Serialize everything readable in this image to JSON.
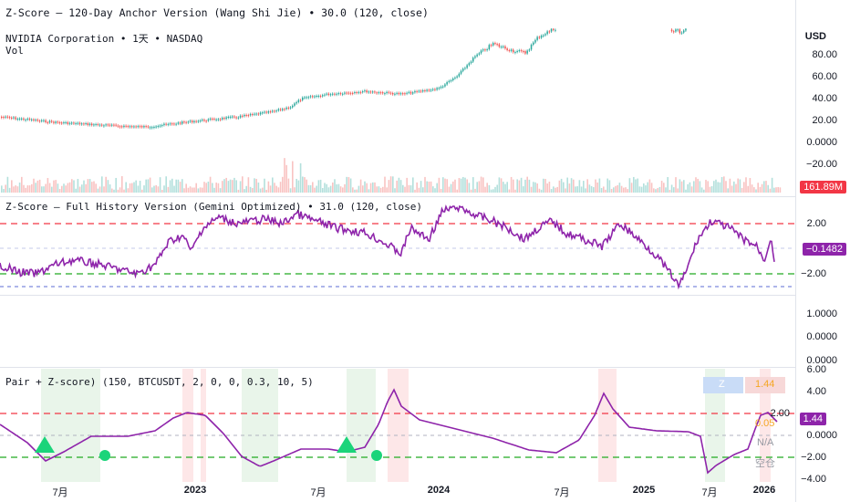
{
  "panes": {
    "top_indicator_title": "Z-Score – 120-Day Anchor Version (Wang Shi Jie) • 30.0 (120, close)",
    "symbol_line": "NVIDIA Corporation • 1天 • NASDAQ",
    "vol_label": "Vol",
    "currency": "USD",
    "price_axis": [
      "80.00",
      "60.00",
      "40.00",
      "20.00",
      "0.0000",
      "−20.00"
    ],
    "vol_tag": "161.89M",
    "z_full_title": "Z-Score – Full History Version (Gemini Optimized) • 31.0 (120, close)",
    "z_full_axis": [
      "2.00",
      "−2.00"
    ],
    "z_full_tag": "−0.1482",
    "empty_axis": [
      "1.0000",
      "0.0000",
      "0.0000"
    ],
    "pair_title": "Pair + Z-score) (150, BTCUSDT, 2, 0, 0, 0.3, 10, 5)",
    "pair_axis": [
      "6.00",
      "4.00",
      "2.00",
      "0.0000",
      "−2.00",
      "−4.00"
    ],
    "pair_tag": "1.44",
    "pair_box_z": "Z",
    "pair_box_val": "1.44",
    "pair_val_orange": "0.05",
    "pair_na": "N/A",
    "pair_state": "空仓"
  },
  "x_axis": [
    {
      "label": "7月",
      "bold": false
    },
    {
      "label": "2023",
      "bold": true
    },
    {
      "label": "7月",
      "bold": false
    },
    {
      "label": "2024",
      "bold": true
    },
    {
      "label": "7月",
      "bold": false
    },
    {
      "label": "2025",
      "bold": true
    },
    {
      "label": "7月",
      "bold": false
    },
    {
      "label": "2026",
      "bold": true
    }
  ],
  "colors": {
    "up": "#26a69a",
    "down": "#ef5350",
    "line": "#8e24aa",
    "red_dash": "#f23645",
    "green_dash": "#22ab22",
    "blue_dash": "#5b6bd6",
    "tag_purple": "#8e24aa",
    "tag_red": "#f23645",
    "marker": "#1bd47a"
  }
}
